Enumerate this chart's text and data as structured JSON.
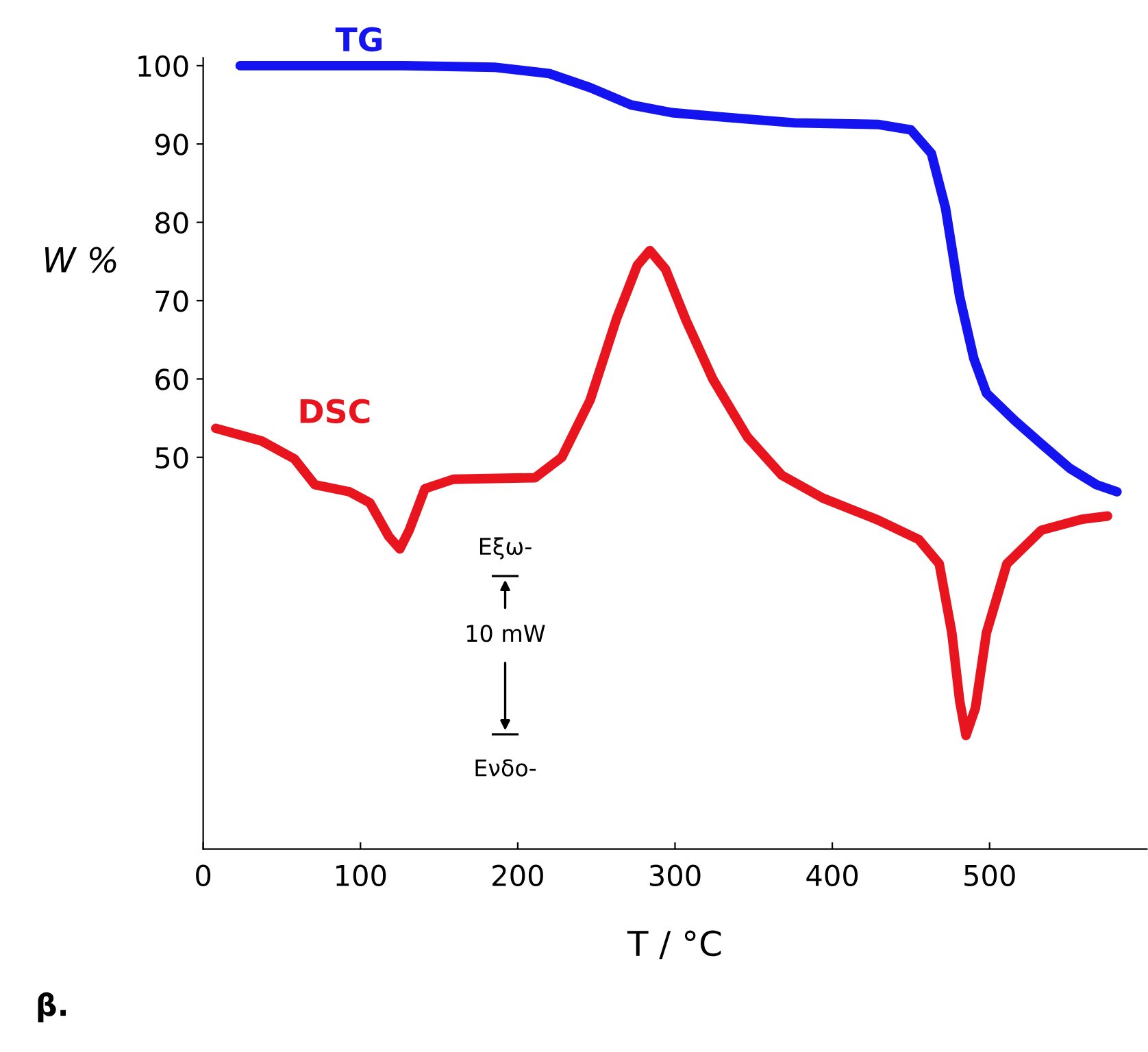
{
  "chart_data": {
    "type": "line",
    "xlabel": "T / °C",
    "ylabel": "W %",
    "xlim": [
      0,
      600
    ],
    "xticks": [
      0,
      100,
      200,
      300,
      400,
      500
    ],
    "ylim": [
      0,
      101
    ],
    "yticks": [
      50,
      60,
      70,
      80,
      90,
      100
    ],
    "grid": false,
    "legend": false,
    "marker": "none",
    "line_style": "solid",
    "series": [
      {
        "name": "TG",
        "color": "#1414f0",
        "x": [
          23.5,
          128,
          185,
          220,
          246,
          272,
          298,
          333,
          376,
          429,
          450,
          463,
          472,
          481,
          490,
          498,
          516,
          533,
          551,
          568,
          581
        ],
        "values": [
          100,
          100,
          99.8,
          99,
          97.2,
          95,
          94,
          93.4,
          92.7,
          92.5,
          91.8,
          88.8,
          81.8,
          70.5,
          62.6,
          58.2,
          54.7,
          51.7,
          48.6,
          46.5,
          45.6
        ]
      },
      {
        "name": "DSC",
        "color": "#e8141e",
        "x": [
          8,
          37,
          58,
          71,
          93,
          106,
          118,
          125,
          131,
          141,
          159,
          211,
          228,
          246,
          263,
          276,
          284,
          294,
          307,
          324,
          346,
          368,
          394,
          429,
          455,
          468,
          476,
          481,
          485,
          491,
          498,
          511,
          533,
          559,
          575
        ],
        "values": [
          53.7,
          52.1,
          49.8,
          46.5,
          45.6,
          44.2,
          39.9,
          38.3,
          40.7,
          46.0,
          47.2,
          47.4,
          50,
          57.3,
          67.8,
          74.5,
          76.4,
          74,
          67.5,
          60,
          52.6,
          47.7,
          44.8,
          42,
          39.5,
          36.4,
          27.6,
          18.9,
          14.5,
          18,
          27.6,
          36.4,
          40.7,
          42.1,
          42.5
        ]
      }
    ],
    "annotations": [
      "Εξω-",
      "10 mW",
      "Ενδο-",
      "β."
    ]
  }
}
